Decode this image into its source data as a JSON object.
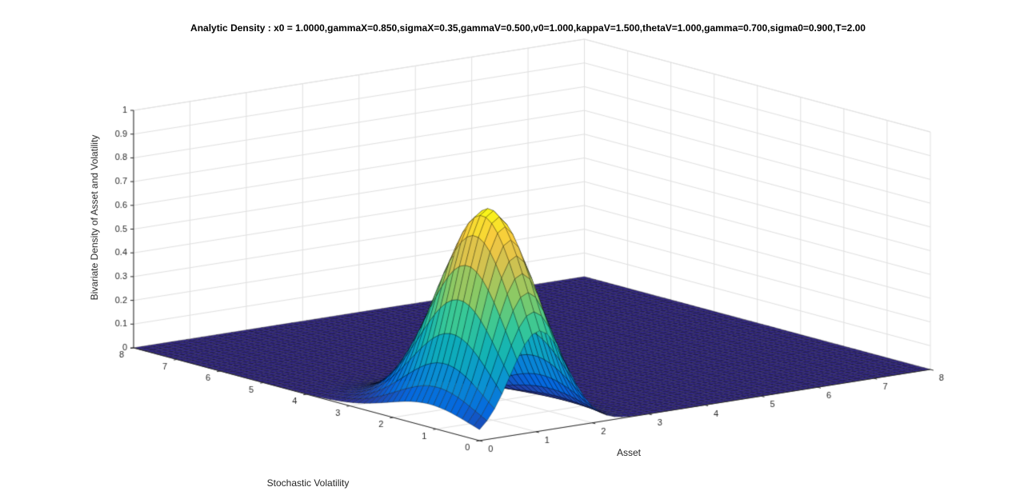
{
  "chart_data": {
    "type": "surface",
    "title": "Analytic Density : x0 = 1.0000,gammaX=0.850,sigmaX=0.35,gammaV=0.500,v0=1.000,kappaV=1.500,thetaV=1.000,gamma=0.700,sigma0=0.900,T=2.00",
    "xlabel": "Asset",
    "ylabel": "Stochastic Volatility",
    "zlabel": "Bivariate Density of Asset and Volatility",
    "xlim": [
      0,
      8
    ],
    "ylim": [
      0,
      8
    ],
    "zlim": [
      0,
      1
    ],
    "xticks": [
      0,
      1,
      2,
      3,
      4,
      5,
      6,
      7,
      8
    ],
    "yticks": [
      0,
      1,
      2,
      3,
      4,
      5,
      6,
      7,
      8
    ],
    "zticks": [
      0,
      0.1,
      0.2,
      0.3,
      0.4,
      0.5,
      0.6,
      0.7,
      0.8,
      0.9,
      1
    ],
    "view": {
      "azimuth": -37.5,
      "elevation": 30
    },
    "grid": true,
    "legend": "none",
    "surface": {
      "n": 61,
      "peak": {
        "x": 1.05,
        "y": 1.15,
        "z": 0.88
      },
      "sigma_x": 0.5,
      "sigma_y": 0.95,
      "colormap": "parula",
      "colormap_stops": [
        [
          53,
          42,
          135
        ],
        [
          5,
          104,
          222
        ],
        [
          10,
          146,
          210
        ],
        [
          15,
          176,
          183
        ],
        [
          55,
          200,
          151
        ],
        [
          132,
          202,
          103
        ],
        [
          201,
          193,
          83
        ],
        [
          248,
          200,
          65
        ],
        [
          249,
          251,
          21
        ]
      ]
    },
    "colors": {
      "background": "#ffffff",
      "wall": "#ffffff",
      "grid": "#e0e0e0",
      "axis": "#262626",
      "edge": "rgba(0,0,0,0.62)"
    }
  }
}
